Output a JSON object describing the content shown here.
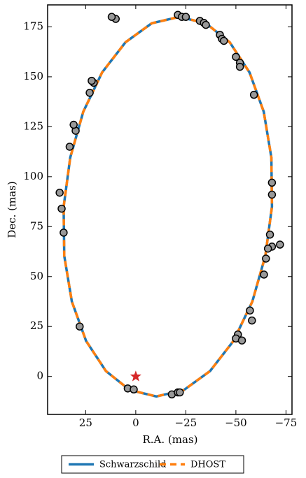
{
  "chart_data": {
    "type": "line",
    "x_label": "R.A. (mas)",
    "y_label": "Dec. (mas)",
    "xlim": [
      44,
      -78
    ],
    "ylim": [
      -19,
      186
    ],
    "xticks": [
      25,
      0,
      {
        "value": -25,
        "label": "−25"
      },
      {
        "value": -50,
        "label": "−50"
      },
      {
        "value": -75,
        "label": "−75"
      }
    ],
    "yticks": [
      0,
      25,
      50,
      75,
      100,
      125,
      150,
      175
    ],
    "legend": "bottom",
    "series": [
      {
        "name": "Schwarzschild",
        "color": "#1f77b4",
        "style": "solid",
        "x": [
          36,
          32.7,
          26.2,
          16.8,
          5.1,
          -8.0,
          -21.7,
          -35.0,
          -46.9,
          -56.8,
          -63.9,
          -67.7,
          -68,
          -64.7,
          -58.2,
          -48.8,
          -37.1,
          -24.0,
          -10.3,
          3.0,
          14.9,
          24.8,
          31.9,
          35.7,
          36
        ],
        "y": [
          85,
          109.6,
          132.5,
          152.2,
          167.3,
          176.8,
          180,
          176.8,
          167.3,
          152.2,
          132.5,
          109.6,
          85,
          60.4,
          37.5,
          17.8,
          2.7,
          -6.8,
          -10,
          -6.8,
          2.7,
          17.8,
          37.5,
          60.4,
          85
        ]
      },
      {
        "name": "DHOST",
        "color": "#ff7f0e",
        "style": "dashed",
        "x": [
          36,
          32.7,
          26.2,
          16.8,
          5.1,
          -8.0,
          -21.7,
          -35.0,
          -46.9,
          -56.8,
          -63.9,
          -67.7,
          -68,
          -64.7,
          -58.2,
          -48.8,
          -37.1,
          -24.0,
          -10.3,
          3.0,
          14.9,
          24.8,
          31.9,
          35.7,
          36
        ],
        "y": [
          85,
          109.6,
          132.5,
          152.2,
          167.3,
          176.8,
          180,
          176.8,
          167.3,
          152.2,
          132.5,
          109.6,
          85,
          60.4,
          37.5,
          17.8,
          2.7,
          -6.8,
          -10,
          -6.8,
          2.7,
          17.8,
          37.5,
          60.4,
          85
        ]
      }
    ],
    "points": {
      "color": "#999999",
      "x": [
        4,
        1,
        -18,
        -21,
        -22,
        28,
        36,
        37,
        38,
        33,
        30,
        31,
        23,
        21,
        22,
        10,
        12,
        -21,
        -23,
        -25,
        -32,
        -34,
        -35,
        -42,
        -43,
        -44,
        -50,
        -52,
        -52,
        -59,
        -68,
        -68,
        -72,
        -68,
        -66,
        -67,
        -65,
        -64,
        -57,
        -58,
        -51,
        -50,
        -53
      ],
      "y": [
        -6,
        -6.5,
        -9,
        -8,
        -8,
        25,
        72,
        84,
        92,
        115,
        123,
        126,
        142,
        147,
        148,
        179,
        180,
        181,
        180,
        180,
        178,
        177,
        176,
        171,
        169,
        168,
        160,
        157,
        155,
        141,
        97,
        91,
        66,
        65,
        64,
        71,
        59,
        51,
        33,
        28,
        21,
        19,
        18
      ]
    },
    "star": {
      "x": 0,
      "y": 0,
      "color": "#d62728"
    }
  }
}
